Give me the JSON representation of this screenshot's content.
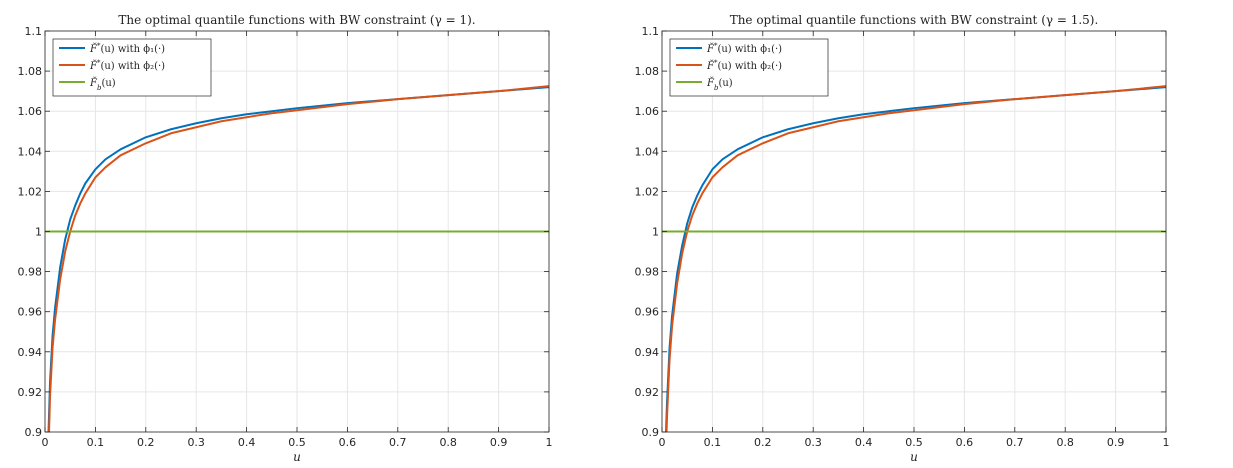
{
  "chart_data": [
    {
      "type": "line",
      "title": "The optimal quantile functions with BW constraint (γ = 1).",
      "xlabel": "u",
      "ylabel": "",
      "xlim": [
        0,
        1
      ],
      "ylim": [
        0.9,
        1.1
      ],
      "xticks": [
        "0",
        "0.1",
        "0.2",
        "0.3",
        "0.4",
        "0.5",
        "0.6",
        "0.7",
        "0.8",
        "0.9",
        "1"
      ],
      "yticks": [
        "0.9",
        "0.92",
        "0.94",
        "0.96",
        "0.98",
        "1",
        "1.02",
        "1.04",
        "1.06",
        "1.08",
        "1.1"
      ],
      "grid": true,
      "legend_position": "top-left",
      "series": [
        {
          "name": "F̆*(u) with ϕ₁(·)",
          "color": "#0072BD",
          "x": [
            0.007,
            0.01,
            0.015,
            0.02,
            0.03,
            0.04,
            0.05,
            0.06,
            0.07,
            0.08,
            0.1,
            0.12,
            0.15,
            0.2,
            0.25,
            0.3,
            0.35,
            0.4,
            0.45,
            0.5,
            0.6,
            0.7,
            0.8,
            0.9,
            1.0
          ],
          "y": [
            0.9,
            0.925,
            0.948,
            0.962,
            0.982,
            0.996,
            1.006,
            1.013,
            1.019,
            1.024,
            1.031,
            1.036,
            1.041,
            1.047,
            1.051,
            1.054,
            1.0565,
            1.0585,
            1.06,
            1.0615,
            1.064,
            1.066,
            1.068,
            1.07,
            1.072
          ]
        },
        {
          "name": "F̆*(u) with ϕ₂(·)",
          "color": "#D95319",
          "x": [
            0.008,
            0.01,
            0.015,
            0.02,
            0.03,
            0.04,
            0.05,
            0.06,
            0.07,
            0.08,
            0.1,
            0.12,
            0.15,
            0.2,
            0.25,
            0.3,
            0.35,
            0.4,
            0.45,
            0.5,
            0.6,
            0.7,
            0.8,
            0.9,
            1.0
          ],
          "y": [
            0.9,
            0.918,
            0.942,
            0.956,
            0.976,
            0.99,
            1.0,
            1.008,
            1.014,
            1.019,
            1.027,
            1.032,
            1.038,
            1.044,
            1.049,
            1.052,
            1.055,
            1.057,
            1.059,
            1.0605,
            1.0635,
            1.066,
            1.068,
            1.07,
            1.0725
          ]
        },
        {
          "name": "F̆_b(u)",
          "color": "#77AC30",
          "x": [
            0,
            1
          ],
          "y": [
            1,
            1
          ]
        }
      ]
    },
    {
      "type": "line",
      "title": "The optimal quantile functions with BW constraint (γ = 1.5).",
      "xlabel": "u",
      "ylabel": "",
      "xlim": [
        0,
        1
      ],
      "ylim": [
        0.9,
        1.1
      ],
      "xticks": [
        "0",
        "0.1",
        "0.2",
        "0.3",
        "0.4",
        "0.5",
        "0.6",
        "0.7",
        "0.8",
        "0.9",
        "1"
      ],
      "yticks": [
        "0.9",
        "0.92",
        "0.94",
        "0.96",
        "0.98",
        "1",
        "1.02",
        "1.04",
        "1.06",
        "1.08",
        "1.1"
      ],
      "grid": true,
      "legend_position": "top-left",
      "series": [
        {
          "name": "F̆*(u) with ϕ₁(·)",
          "color": "#0072BD",
          "x": [
            0.008,
            0.01,
            0.015,
            0.02,
            0.03,
            0.04,
            0.05,
            0.06,
            0.07,
            0.08,
            0.1,
            0.12,
            0.15,
            0.2,
            0.25,
            0.3,
            0.35,
            0.4,
            0.45,
            0.5,
            0.6,
            0.7,
            0.8,
            0.9,
            1.0
          ],
          "y": [
            0.9,
            0.915,
            0.942,
            0.958,
            0.979,
            0.993,
            1.004,
            1.012,
            1.018,
            1.023,
            1.031,
            1.036,
            1.041,
            1.047,
            1.051,
            1.054,
            1.0565,
            1.0585,
            1.06,
            1.0615,
            1.064,
            1.066,
            1.068,
            1.07,
            1.072
          ]
        },
        {
          "name": "F̆*(u) with ϕ₂(·)",
          "color": "#D95319",
          "x": [
            0.009,
            0.01,
            0.015,
            0.02,
            0.03,
            0.04,
            0.05,
            0.06,
            0.07,
            0.08,
            0.1,
            0.12,
            0.15,
            0.2,
            0.25,
            0.3,
            0.35,
            0.4,
            0.45,
            0.5,
            0.6,
            0.7,
            0.8,
            0.9,
            1.0
          ],
          "y": [
            0.9,
            0.908,
            0.936,
            0.953,
            0.974,
            0.989,
            1.0,
            1.008,
            1.014,
            1.019,
            1.027,
            1.032,
            1.038,
            1.044,
            1.049,
            1.052,
            1.055,
            1.057,
            1.059,
            1.0605,
            1.0635,
            1.066,
            1.068,
            1.07,
            1.0725
          ]
        },
        {
          "name": "F̆_b(u)",
          "color": "#77AC30",
          "x": [
            0,
            1
          ],
          "y": [
            1,
            1
          ]
        }
      ]
    }
  ]
}
